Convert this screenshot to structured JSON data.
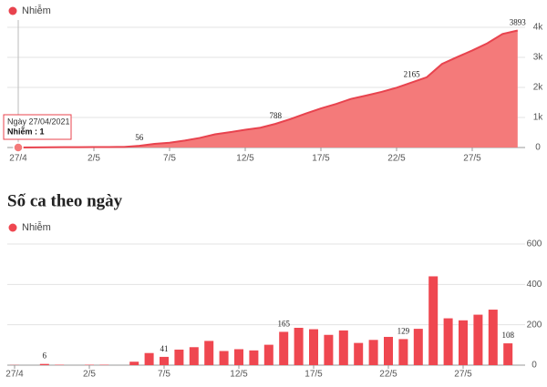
{
  "chart_data": [
    {
      "type": "area",
      "categories": [
        "27/4",
        null,
        null,
        null,
        null,
        "2/5",
        null,
        null,
        null,
        null,
        "7/5",
        null,
        null,
        null,
        null,
        "12/5",
        null,
        null,
        null,
        null,
        "17/5",
        null,
        null,
        null,
        null,
        "22/5",
        null,
        null,
        null,
        null,
        "27/5",
        null,
        null,
        null
      ],
      "series": [
        {
          "name": "Nhiễm",
          "color": "#e8434e",
          "fill": "#f47a7a",
          "values": [
            1,
            2,
            8,
            10,
            12,
            14,
            16,
            20,
            56,
            120,
            160,
            230,
            320,
            440,
            510,
            590,
            660,
            788,
            950,
            1130,
            1300,
            1450,
            1620,
            1730,
            1850,
            1990,
            2165,
            2340,
            2780,
            3010,
            3230,
            3470,
            3780,
            3893
          ],
          "value_labels": [
            null,
            null,
            null,
            null,
            null,
            null,
            null,
            null,
            "56",
            null,
            null,
            null,
            null,
            null,
            null,
            null,
            null,
            "788",
            null,
            null,
            null,
            null,
            null,
            null,
            null,
            null,
            "2165",
            null,
            null,
            null,
            null,
            null,
            null,
            "3893"
          ]
        }
      ],
      "ylim": [
        0,
        4000
      ],
      "yticks": [
        0,
        {
          "value": 1000,
          "label": "1k"
        },
        {
          "value": 2000,
          "label": "2k"
        },
        {
          "value": 3000,
          "label": "3k"
        },
        {
          "value": 4000,
          "label": "4k"
        }
      ],
      "grid": true,
      "tooltip": {
        "title": "Ngày 27/04/2021",
        "text": "Nhiễm : 1"
      }
    },
    {
      "type": "bar",
      "title": "Số ca theo ngày",
      "categories": [
        "27/4",
        null,
        null,
        null,
        null,
        "2/5",
        null,
        null,
        null,
        null,
        "7/5",
        null,
        null,
        null,
        null,
        "12/5",
        null,
        null,
        null,
        null,
        "17/5",
        null,
        null,
        null,
        null,
        "22/5",
        null,
        null,
        null,
        null,
        "27/5",
        null,
        null,
        null
      ],
      "series": [
        {
          "name": "Nhiễm",
          "color": "#ef4750",
          "values": [
            1,
            0,
            6,
            2,
            0,
            2,
            2,
            0,
            17,
            60,
            41,
            77,
            89,
            120,
            70,
            79,
            73,
            101,
            165,
            185,
            178,
            150,
            172,
            110,
            125,
            140,
            129,
            180,
            440,
            232,
            222,
            250,
            275,
            108
          ],
          "value_labels": [
            null,
            null,
            "6",
            null,
            null,
            null,
            null,
            null,
            null,
            null,
            "41",
            null,
            null,
            null,
            null,
            null,
            null,
            null,
            "165",
            null,
            null,
            null,
            null,
            null,
            null,
            null,
            "129",
            null,
            null,
            null,
            null,
            null,
            null,
            "108"
          ]
        }
      ],
      "ylim": [
        0,
        600
      ],
      "yticks": [
        0,
        200,
        400,
        600
      ],
      "grid": true
    }
  ]
}
